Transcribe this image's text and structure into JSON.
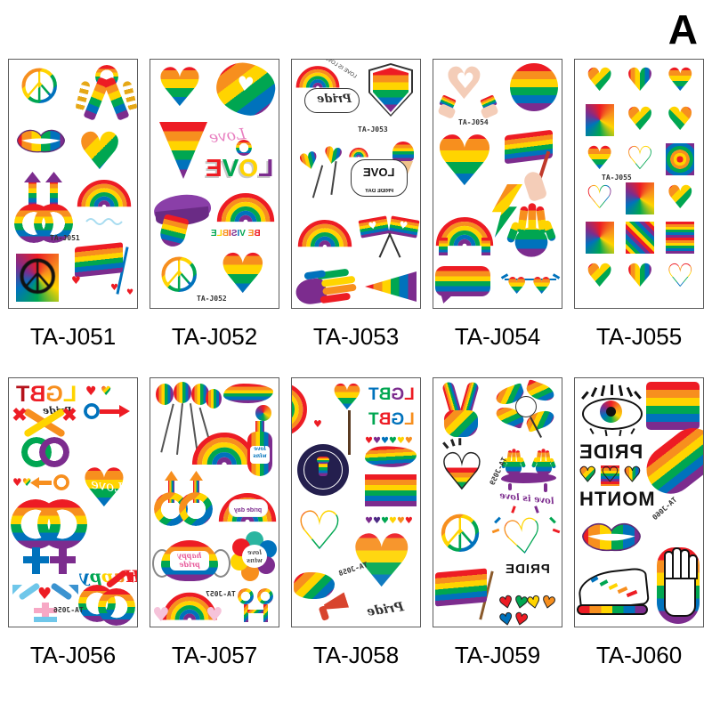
{
  "page": {
    "variant_label": "A",
    "background_color": "#ffffff",
    "sheet_border_color": "#5c5c5c",
    "description": "Grid of 10 pride rainbow temporary tattoo sheets, 2 rows x 5 columns, each with a product code label below"
  },
  "palette": {
    "rainbow": [
      "#ed1c24",
      "#f78f1e",
      "#ffd400",
      "#00a651",
      "#0072bc",
      "#7c2c8e"
    ]
  },
  "sheets": [
    {
      "label": "TA-J051",
      "code": "TA-J051",
      "icons": [
        "peace-sign-icon",
        "awareness-ribbon-icon",
        "rainbow-lips-icon",
        "rainbow-heart-icon",
        "double-male-symbol-icon",
        "rainbow-arc-icon",
        "pride-flag-icon",
        "outlined-peace-sign-icon"
      ]
    },
    {
      "label": "TA-J052",
      "code": "TA-J052",
      "texts": {
        "love_script": "Love",
        "love": "LOVE",
        "be_visible": "BE VISIBLE"
      },
      "icons": [
        "rainbow-heart-icon",
        "paint-splash-hands-icon",
        "rainbow-triangle-icon",
        "love-script-text",
        "love-3d-text",
        "lips-tongue-icon",
        "rainbow-arc-icon",
        "be-visible-text",
        "peace-sign-icon",
        "rainbow-heart-icon"
      ]
    },
    {
      "label": "TA-J053",
      "code": "TA-J053",
      "texts": {
        "love_is_love": "LOVE IS LOVE",
        "pride_script": "Pride",
        "love": "LOVE",
        "pride_day": "PRIDE DAY"
      },
      "icons": [
        "rainbow-arc-icon",
        "pride-cloud-icon",
        "rainbow-shield-icon",
        "heart-lollipop-icon",
        "love-pride-day-cloud-icon",
        "ice-cream-icon",
        "crossed-flags-icon",
        "rainbow-fist-icon",
        "rainbow-pennant-icon"
      ]
    },
    {
      "label": "TA-J054",
      "code": "TA-J054",
      "icons": [
        "heart-hands-icon",
        "rainbow-circle-icon",
        "watercolor-heart-icon",
        "hand-holding-flag-icon",
        "rainbow-lightning-icon",
        "rainbow-arch-icon",
        "rainbow-handprint-icon",
        "rainbow-speech-bubble-icon",
        "heart-sunglasses-icon"
      ]
    },
    {
      "label": "TA-J055",
      "code": "TA-J055",
      "icons": [
        "splatter-heart-icon",
        "striped-heart-icon",
        "peace-heart-icon",
        "patchwork-heart-icon",
        "scribble-heart-icon",
        "diagonal-heart-icon",
        "hug-heart-icon",
        "outline-heart-icon",
        "concentric-heart-icon",
        "open-outline-heart-icon",
        "pinwheel-heart-icon",
        "broken-heart-icon",
        "sunburst-heart-icon",
        "pixel-heart-icon",
        "lined-heart-icon",
        "drip-heart-icon",
        "winged-heart-icon",
        "doodle-heart-icon"
      ]
    },
    {
      "label": "TA-J056",
      "code": "TA-J056",
      "texts": {
        "lgbt": "LGBT",
        "pride_script": "Pride",
        "love_script": "Love",
        "happy": "Happy",
        "pride": "Pride"
      },
      "icons": [
        "lgbt-text",
        "pride-script-text",
        "crossed-gender-symbols-icon",
        "hearts-arrow-icon",
        "male-symbol-arrow-icon",
        "double-female-symbol-icon",
        "love-heart-icon",
        "happy-pride-script-text",
        "transgender-symbol-icon",
        "double-male-symbol-icon"
      ]
    },
    {
      "label": "TA-J057",
      "code": "TA-J057",
      "texts": {
        "love_wins": "love wins",
        "pride_day": "pride day",
        "happy_pride": "happy pride"
      },
      "icons": [
        "gender-balloons-icon",
        "wavy-flag-icon",
        "flower-icon",
        "rainbow-fan-icon",
        "love-wins-bottle-icon",
        "double-male-symbol-icon",
        "pride-day-rainbow-icon",
        "rainbow-face-mask-icon",
        "love-wins-flower-icon",
        "rainbow-hearts-arc-icon",
        "couple-figures-icon"
      ]
    },
    {
      "label": "TA-J058",
      "code": "TA-J058",
      "texts": {
        "lgbt": "LGBT",
        "pride_script": "Pride"
      },
      "icons": [
        "partial-rainbow-icon",
        "heart-lollipop-icon",
        "lgbt-text",
        "hearts-row-icon",
        "wavy-flag-icon",
        "pride-flag-icon",
        "resist-fist-badge-icon",
        "rainbow-heart-outline-icon",
        "watercolor-heart-icon",
        "flag-horn-icon",
        "pride-script-text"
      ]
    },
    {
      "label": "TA-J059",
      "code": "TA-J059",
      "texts": {
        "love_is_love": "love is love",
        "pride": "PRIDE"
      },
      "icons": [
        "victory-hand-icon",
        "pinwheel-flower-icon",
        "half-filled-heart-icon",
        "rainbow-handprints-icon",
        "love-is-love-script-text",
        "peace-sign-icon",
        "heart-ribbon-icon",
        "pride-text",
        "rainbow-flag-icon",
        "hearts-chain-icon"
      ]
    },
    {
      "label": "TA-J060",
      "code": "TA-J060",
      "texts": {
        "pride": "PRIDE",
        "month": "MONTH"
      },
      "icons": [
        "rainbow-eye-icon",
        "paint-swatch-icon",
        "pride-month-text",
        "pride-hearts-icon",
        "rainbow-brush-stroke-icon",
        "rainbow-lips-icon",
        "rainbow-sneaker-icon",
        "rainbow-hand-icon"
      ]
    }
  ]
}
